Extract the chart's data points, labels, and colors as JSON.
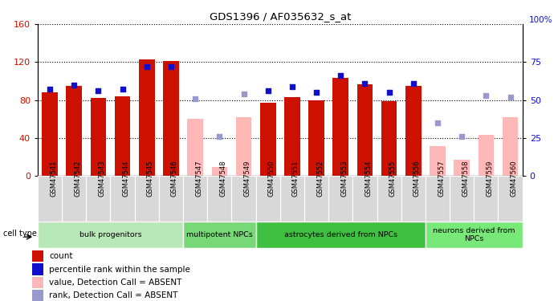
{
  "title": "GDS1396 / AF035632_s_at",
  "samples": [
    "GSM47541",
    "GSM47542",
    "GSM47543",
    "GSM47544",
    "GSM47545",
    "GSM47546",
    "GSM47547",
    "GSM47548",
    "GSM47549",
    "GSM47550",
    "GSM47551",
    "GSM47552",
    "GSM47553",
    "GSM47554",
    "GSM47555",
    "GSM47556",
    "GSM47557",
    "GSM47558",
    "GSM47559",
    "GSM47560"
  ],
  "count_present": [
    88,
    95,
    82,
    84,
    123,
    121,
    null,
    null,
    null,
    77,
    83,
    80,
    103,
    97,
    79,
    95,
    null,
    null,
    null,
    null
  ],
  "count_absent": [
    null,
    null,
    null,
    null,
    null,
    null,
    60,
    10,
    62,
    null,
    null,
    null,
    null,
    null,
    null,
    null,
    32,
    17,
    43,
    62
  ],
  "rank_present": [
    57,
    60,
    56,
    57,
    72,
    72,
    null,
    null,
    null,
    56,
    59,
    55,
    66,
    61,
    55,
    61,
    null,
    null,
    null,
    null
  ],
  "rank_absent": [
    null,
    null,
    null,
    null,
    null,
    null,
    51,
    26,
    54,
    null,
    null,
    null,
    null,
    null,
    null,
    null,
    35,
    26,
    53,
    52
  ],
  "cell_type_groups": [
    {
      "label": "bulk progenitors",
      "start": 0,
      "end": 5,
      "color": "#b8e8b8"
    },
    {
      "label": "multipotent NPCs",
      "start": 6,
      "end": 8,
      "color": "#78d878"
    },
    {
      "label": "astrocytes derived from NPCs",
      "start": 9,
      "end": 15,
      "color": "#40c040"
    },
    {
      "label": "neurons derived from\nNPCs",
      "start": 16,
      "end": 19,
      "color": "#78e878"
    }
  ],
  "bar_color_present": "#cc1100",
  "bar_color_absent": "#ffb8b8",
  "rank_color_present": "#1010cc",
  "rank_color_absent": "#9999cc",
  "ylim_left": [
    0,
    160
  ],
  "ylim_right": [
    0,
    100
  ],
  "bg_color": "#ffffff",
  "xticklabel_bg": "#d8d8d8",
  "legend_items": [
    {
      "color": "#cc1100",
      "label": "count"
    },
    {
      "color": "#1010cc",
      "label": "percentile rank within the sample"
    },
    {
      "color": "#ffb8b8",
      "label": "value, Detection Call = ABSENT"
    },
    {
      "color": "#9999cc",
      "label": "rank, Detection Call = ABSENT"
    }
  ]
}
